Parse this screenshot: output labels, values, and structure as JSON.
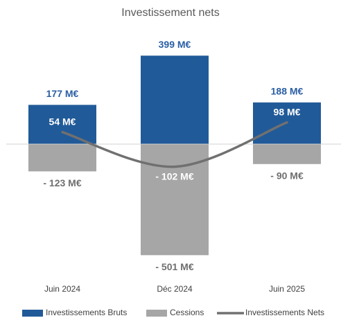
{
  "chart_data": {
    "type": "bar",
    "title": "Investissement nets",
    "categories": [
      "Juin 2024",
      "Déc 2024",
      "Juin 2025"
    ],
    "series": [
      {
        "name": "Investissements Bruts",
        "type": "bar",
        "color": "#215a98",
        "label_color": "#2a5ea4",
        "values": [
          177,
          399,
          188
        ],
        "value_labels": [
          "177 M€",
          "399 M€",
          "188 M€"
        ]
      },
      {
        "name": "Cessions",
        "type": "bar",
        "color": "#a6a6a6",
        "label_color": "#6f6f6f",
        "values": [
          -123,
          -501,
          -90
        ],
        "value_labels": [
          "- 123 M€",
          "- 501 M€",
          "- 90 M€"
        ]
      },
      {
        "name": "Investissements Nets",
        "type": "line",
        "color": "#707070",
        "label_color": "#ffffff",
        "values": [
          54,
          -102,
          98
        ],
        "value_labels": [
          "54 M€",
          "- 102 M€",
          "98 M€"
        ]
      }
    ],
    "ylim": [
      -600,
      500
    ],
    "legend": "bottom"
  }
}
